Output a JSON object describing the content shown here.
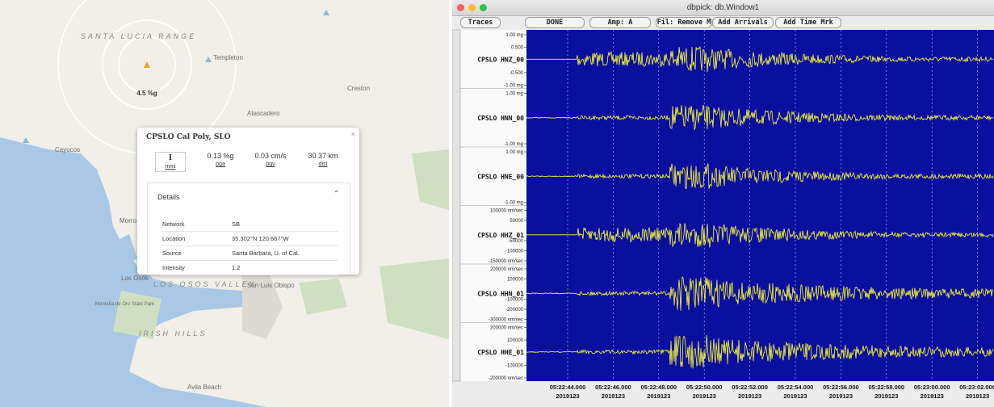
{
  "map": {
    "labels": [
      "SANTA LUCIA RANGE",
      "Templeton",
      "Creston",
      "Atascadero",
      "Cayucos",
      "Morro Bay",
      "Los Osos",
      "LOS OSOS VALLEY",
      "San Luis Obispo",
      "IRISH HILLS",
      "Avila Beach",
      "Montaña de Oro State Park",
      "4.5 %g"
    ],
    "popup": {
      "title": "CPSLO Cal Poly, SLO",
      "metrics": [
        {
          "value": "I",
          "unit": "mmi"
        },
        {
          "value": "0.13 %g",
          "unit": "pga"
        },
        {
          "value": "0.03 cm/s",
          "unit": "pgv"
        },
        {
          "value": "30.37 km",
          "unit": "dist"
        }
      ],
      "details_title": "Details",
      "details": [
        [
          "Network",
          "SB"
        ],
        [
          "Location",
          "35.302°N 120.667°W"
        ],
        [
          "Source",
          "Santa Barbara, U. of Cal."
        ],
        [
          "Intensity",
          "1.2"
        ]
      ]
    }
  },
  "window": {
    "title": "dbpick: db.Window1",
    "buttons": [
      "Traces",
      "DONE",
      "Amp: A",
      "Fil: Remove M",
      "Add Arrivals",
      "Add Time Mrk"
    ],
    "traces": [
      {
        "name": "CPSLO HNZ_00",
        "labels": [
          "1.00 mg",
          "0.500",
          "-0.500",
          "-1.00 mg"
        ]
      },
      {
        "name": "CPSLO HNN_00",
        "labels": [
          "1.00 mg",
          "-1.00 mg"
        ]
      },
      {
        "name": "CPSLO HNE_00",
        "labels": [
          "1.00 mg",
          "-1.00 mg"
        ]
      },
      {
        "name": "CPSLO HHZ_01",
        "labels": [
          "100000 nm/sec",
          "50000",
          "-50000",
          "-100000",
          "-150000 nm/sec"
        ]
      },
      {
        "name": "CPSLO HHN_01",
        "labels": [
          "200000 nm/sec",
          "100000",
          "-100000",
          "-200000",
          "-300000 nm/sec"
        ]
      },
      {
        "name": "CPSLO HHE_01",
        "labels": [
          "200000 nm/sec",
          "100000",
          "-100000",
          "-200000 nm/sec"
        ]
      }
    ],
    "times": [
      "05:22:44.000",
      "05:22:46.000",
      "05:22:48.000",
      "05:22:50.000",
      "05:22:52.000",
      "05:22:54.000",
      "05:22:56.000",
      "05:22:58.000",
      "05:23:00.000",
      "05:23:02.000"
    ],
    "day": "2019123"
  }
}
